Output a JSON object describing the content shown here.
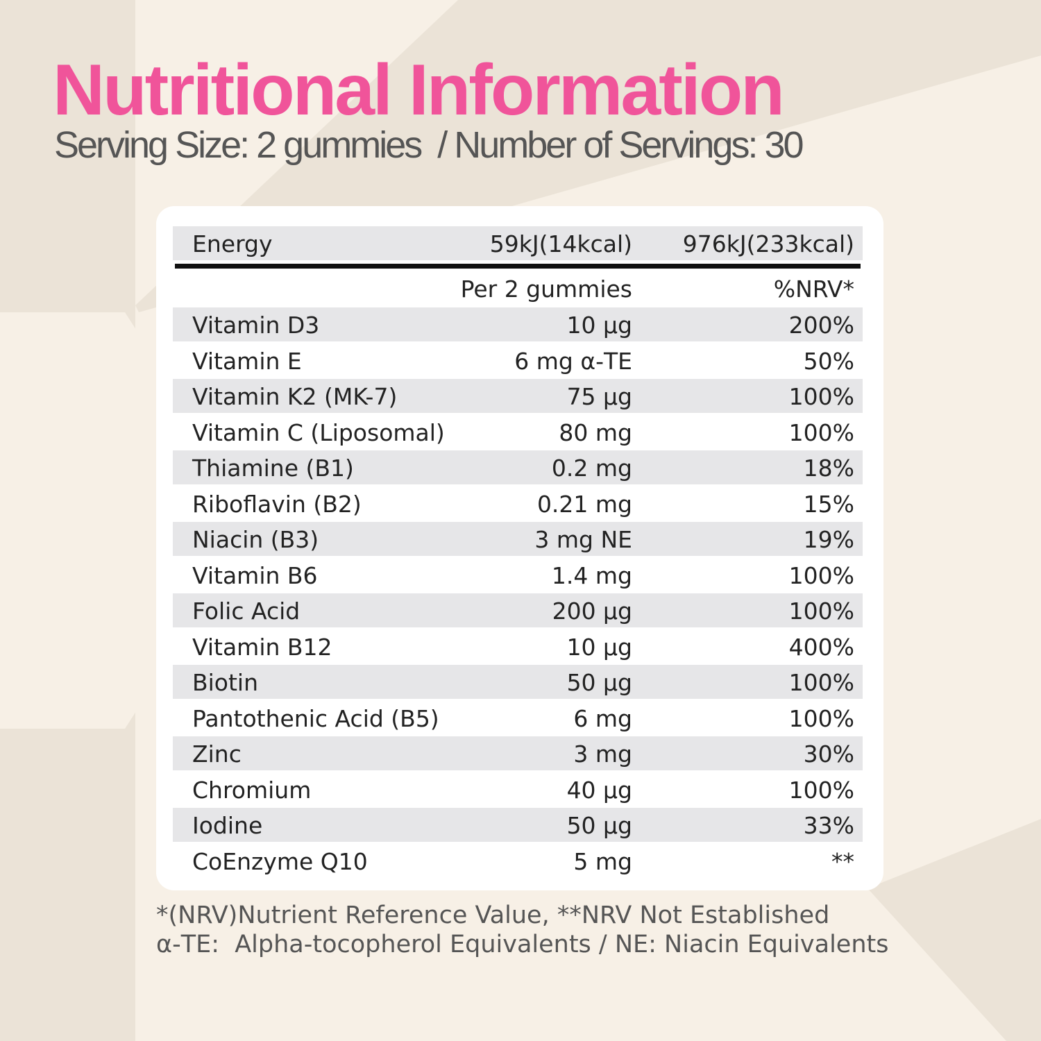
{
  "colors": {
    "accent": "#f0549a",
    "background": "#f7f0e6",
    "row_stripe": "#e6e6e8"
  },
  "header": {
    "title": "Nutritional Information",
    "subtitle": "Serving Size: 2 gummies  / Number of Servings: 30"
  },
  "table": {
    "energy": {
      "label": "Energy",
      "per_serving": "59kJ(14kcal)",
      "total": "976kJ(233kcal)"
    },
    "columns": {
      "amount": "Per 2  gummies",
      "nrv": "%NRV*"
    },
    "rows": [
      {
        "name": "Vitamin D3",
        "amount": "10 µg",
        "nrv": "200%"
      },
      {
        "name": "Vitamin E",
        "amount": "6 mg α-TE",
        "nrv": "50%"
      },
      {
        "name": "Vitamin K2 (MK-7)",
        "amount": "75 µg",
        "nrv": "100%"
      },
      {
        "name": "Vitamin C (Liposomal)",
        "amount": "80 mg",
        "nrv": "100%"
      },
      {
        "name": "Thiamine (B1)",
        "amount": "0.2 mg",
        "nrv": "18%"
      },
      {
        "name": "Riboflavin (B2)",
        "amount": "0.21 mg",
        "nrv": "15%"
      },
      {
        "name": "Niacin (B3)",
        "amount": "3 mg NE",
        "nrv": "19%"
      },
      {
        "name": "Vitamin B6",
        "amount": "1.4 mg",
        "nrv": "100%"
      },
      {
        "name": "Folic Acid",
        "amount": "200 µg",
        "nrv": "100%"
      },
      {
        "name": "Vitamin B12",
        "amount": "10 µg",
        "nrv": "400%"
      },
      {
        "name": "Biotin",
        "amount": "50 µg",
        "nrv": "100%"
      },
      {
        "name": "Pantothenic Acid (B5)",
        "amount": "6 mg",
        "nrv": "100%"
      },
      {
        "name": "Zinc",
        "amount": "3 mg",
        "nrv": "30%"
      },
      {
        "name": "Chromium",
        "amount": "40 µg",
        "nrv": "100%"
      },
      {
        "name": "Iodine",
        "amount": "50 µg",
        "nrv": "33%"
      },
      {
        "name": "CoEnzyme Q10",
        "amount": "5 mg",
        "nrv": "**"
      }
    ]
  },
  "footnotes": [
    "*(NRV)Nutrient Reference Value, **NRV Not Established",
    "α-TE:  Alpha-tocopherol Equivalents / NE: Niacin Equivalents"
  ]
}
